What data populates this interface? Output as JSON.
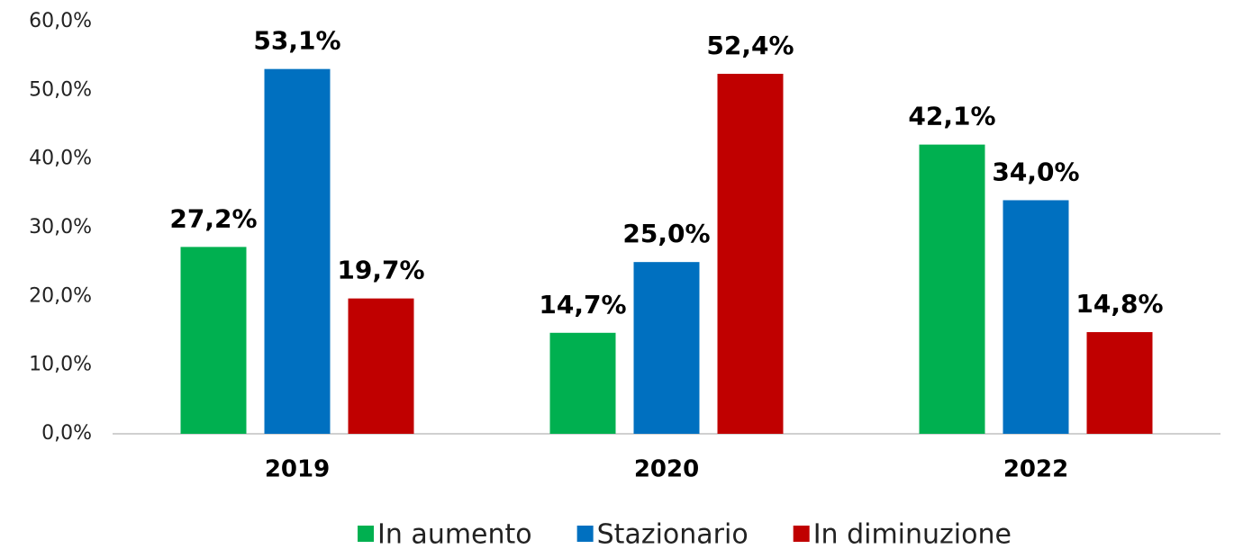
{
  "chart_data": {
    "type": "bar",
    "categories": [
      "2019",
      "2020",
      "2022"
    ],
    "series": [
      {
        "name": "In aumento",
        "color": "#00b050",
        "values": [
          27.2,
          14.7,
          42.1
        ],
        "value_labels": [
          "27,2%",
          "14,7%",
          "42,1%"
        ]
      },
      {
        "name": "Stazionario",
        "color": "#0070c0",
        "values": [
          53.1,
          25.0,
          34.0
        ],
        "value_labels": [
          "53,1%",
          "25,0%",
          "34,0%"
        ]
      },
      {
        "name": "In diminuzione",
        "color": "#c00000",
        "values": [
          19.7,
          52.4,
          14.8
        ],
        "value_labels": [
          "19,7%",
          "52,4%",
          "14,8%"
        ]
      }
    ],
    "ylim": [
      0,
      60
    ],
    "yticks": [
      {
        "value": 0,
        "label": "0,0%"
      },
      {
        "value": 10,
        "label": "10,0%"
      },
      {
        "value": 20,
        "label": "20,0%"
      },
      {
        "value": 30,
        "label": "30,0%"
      },
      {
        "value": 40,
        "label": "40,0%"
      },
      {
        "value": 50,
        "label": "50,0%"
      },
      {
        "value": 60,
        "label": "60,0%"
      }
    ],
    "legend": "bottom"
  }
}
